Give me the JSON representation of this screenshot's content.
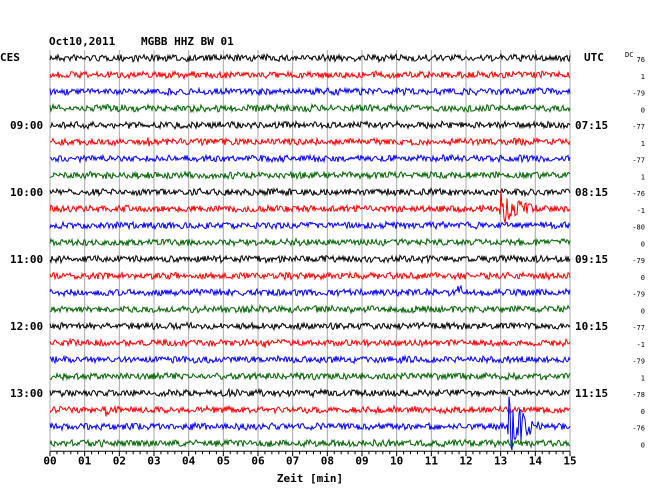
{
  "header": {
    "date": "Oct10,2011",
    "station": "MGBB HHZ BW 01"
  },
  "chart_data": {
    "type": "helicorder",
    "title": "Oct10,2011   MGBB HHZ BW 01",
    "xlabel": "Zeit [min]",
    "left_axis_label": "CES",
    "right_axis_label": "UTC",
    "offset_header": "DC",
    "x_ticks": [
      "00",
      "01",
      "02",
      "03",
      "04",
      "05",
      "06",
      "07",
      "08",
      "09",
      "10",
      "11",
      "12",
      "13",
      "14",
      "15"
    ],
    "xlim": [
      0,
      15
    ],
    "trace_colors": [
      "#000000",
      "#ff0000",
      "#0000ff",
      "#006400"
    ],
    "left_time_labels": [
      {
        "row": 4,
        "text": "09:00"
      },
      {
        "row": 8,
        "text": "10:00"
      },
      {
        "row": 12,
        "text": "11:00"
      },
      {
        "row": 16,
        "text": "12:00"
      },
      {
        "row": 20,
        "text": "13:00"
      }
    ],
    "right_time_labels": [
      {
        "row": 4,
        "text": "07:15"
      },
      {
        "row": 8,
        "text": "08:15"
      },
      {
        "row": 12,
        "text": "09:15"
      },
      {
        "row": 16,
        "text": "10:15"
      },
      {
        "row": 20,
        "text": "11:15"
      }
    ],
    "offsets": [
      "76",
      "1",
      "-79",
      "0",
      "-77",
      "1",
      "-77",
      "1",
      "-76",
      "-1",
      "-80",
      "0",
      "-79",
      "0",
      "-79",
      "0",
      "-77",
      "-1",
      "-79",
      "1",
      "-78",
      "0",
      "-76",
      "0"
    ],
    "events": [
      {
        "row": 9,
        "minute": 13.0,
        "amplitude": "large"
      },
      {
        "row": 14,
        "minute": 11.8,
        "amplitude": "medium"
      },
      {
        "row": 22,
        "minute": 13.2,
        "amplitude": "very-large"
      },
      {
        "row": 17,
        "minute": 6.2,
        "amplitude": "small"
      },
      {
        "row": 21,
        "minute": 1.6,
        "amplitude": "small"
      },
      {
        "row": 5,
        "minute": 2.8,
        "amplitude": "small"
      }
    ],
    "grid": true
  }
}
